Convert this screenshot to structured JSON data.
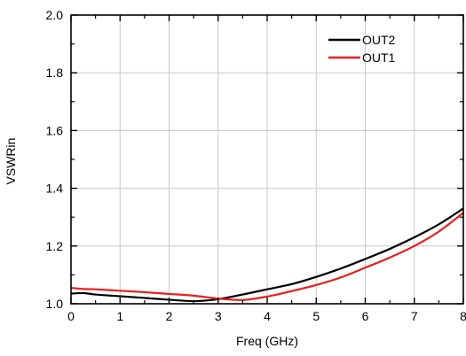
{
  "chart_data": {
    "type": "line",
    "title": "",
    "xlabel": "Freq (GHz)",
    "ylabel": "VSWRin",
    "xlim": [
      0,
      8
    ],
    "ylim": [
      1.0,
      2.0
    ],
    "x_ticks": [
      0,
      1,
      2,
      3,
      4,
      5,
      6,
      7,
      8
    ],
    "x_tick_labels": [
      "0",
      "1",
      "2",
      "3",
      "4",
      "5",
      "6",
      "7",
      "8"
    ],
    "y_ticks": [
      1.0,
      1.2,
      1.4,
      1.6,
      1.8,
      2.0
    ],
    "y_tick_labels": [
      "1.0",
      "1.2",
      "1.4",
      "1.6",
      "1.8",
      "2.0"
    ],
    "grid": true,
    "legend_position": "top-right",
    "series": [
      {
        "name": "OUT2",
        "color": "#000000",
        "x": [
          0,
          0.25,
          0.5,
          1,
          1.5,
          2,
          2.5,
          3,
          3.5,
          4,
          4.5,
          5,
          5.5,
          6,
          6.5,
          7,
          7.5,
          8
        ],
        "y": [
          1.035,
          1.037,
          1.032,
          1.026,
          1.02,
          1.014,
          1.009,
          1.016,
          1.032,
          1.05,
          1.068,
          1.093,
          1.122,
          1.155,
          1.19,
          1.23,
          1.275,
          1.33
        ]
      },
      {
        "name": "OUT1",
        "color": "#ee1c1c",
        "x": [
          0,
          0.25,
          0.5,
          1,
          1.5,
          2,
          2.5,
          3,
          3.5,
          4,
          4.5,
          5,
          5.5,
          6,
          6.5,
          7,
          7.5,
          8
        ],
        "y": [
          1.055,
          1.051,
          1.05,
          1.045,
          1.04,
          1.034,
          1.028,
          1.018,
          1.013,
          1.025,
          1.044,
          1.065,
          1.091,
          1.125,
          1.16,
          1.2,
          1.25,
          1.315
        ]
      }
    ]
  }
}
